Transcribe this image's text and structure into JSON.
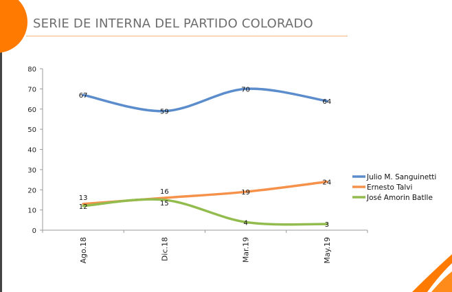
{
  "header": {
    "title": "SERIE DE INTERNA DEL PARTIDO COLORADO"
  },
  "colors": {
    "accent": "#ff7a00"
  },
  "chart_data": {
    "type": "line",
    "title": "SERIE DE INTERNA DEL PARTIDO COLORADO",
    "categories": [
      "Ago.18",
      "Dic.18",
      "Mar.19",
      "May.19"
    ],
    "ylim": [
      0,
      80
    ],
    "yticks": [
      0,
      10,
      20,
      30,
      40,
      50,
      60,
      70,
      80
    ],
    "grid": false,
    "legend_position": "right",
    "smooth": true,
    "series": [
      {
        "name": "Julio M. Sanguinetti",
        "color": "#5b8ccc",
        "values": [
          67,
          59,
          70,
          64
        ]
      },
      {
        "name": "Ernesto Talvi",
        "color": "#f5914a",
        "values": [
          13,
          16,
          19,
          24
        ]
      },
      {
        "name": "José Amorin Batlle",
        "color": "#93bc4e",
        "values": [
          12,
          15,
          4,
          3
        ]
      }
    ]
  }
}
